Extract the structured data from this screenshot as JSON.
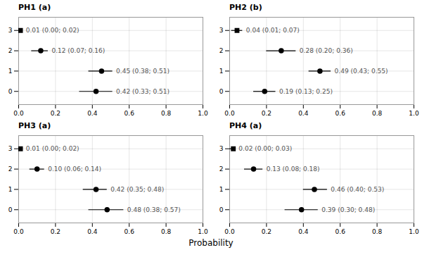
{
  "chart_data": [
    {
      "type": "errorbar",
      "title": "PH1 (a)",
      "xlim": [
        0.0,
        1.0
      ],
      "xticks": [
        {
          "value": 0.0,
          "label": "0.0"
        },
        0.2,
        0.4,
        0.6,
        0.8,
        {
          "value": 1.0,
          "label": "1.0"
        }
      ],
      "ylim": [
        -0.65,
        3.65
      ],
      "yticks": [
        0,
        1,
        2,
        3
      ],
      "grid": true,
      "data_labels": true,
      "color": "black",
      "series": [
        {
          "marker": "square",
          "y": [
            3
          ],
          "values": [
            0.01
          ],
          "lo": [
            0.0
          ],
          "hi": [
            0.02
          ],
          "value_labels": [
            "0.01 (0.00; 0.02)"
          ]
        },
        {
          "marker": "circle",
          "y": [
            2,
            1,
            0
          ],
          "values": [
            0.12,
            0.45,
            0.42
          ],
          "lo": [
            0.07,
            0.38,
            0.33
          ],
          "hi": [
            0.16,
            0.51,
            0.51
          ],
          "value_labels": [
            "0.12 (0.07; 0.16)",
            "0.45 (0.38; 0.51)",
            "0.42 (0.33; 0.51)"
          ]
        }
      ]
    },
    {
      "type": "errorbar",
      "title": "PH2 (b)",
      "xlim": [
        0.0,
        1.0
      ],
      "xticks": [
        {
          "value": 0.0,
          "label": "0.0"
        },
        0.2,
        0.4,
        0.6,
        0.8,
        {
          "value": 1.0,
          "label": "1.0"
        }
      ],
      "ylim": [
        -0.65,
        3.65
      ],
      "yticks": [
        0,
        1,
        2,
        3
      ],
      "grid": true,
      "data_labels": true,
      "color": "black",
      "series": [
        {
          "marker": "square",
          "y": [
            3
          ],
          "values": [
            0.04
          ],
          "lo": [
            0.01
          ],
          "hi": [
            0.07
          ],
          "value_labels": [
            "0.04 (0.01; 0.07)"
          ]
        },
        {
          "marker": "circle",
          "y": [
            2,
            1,
            0
          ],
          "values": [
            0.28,
            0.49,
            0.19
          ],
          "lo": [
            0.2,
            0.43,
            0.13
          ],
          "hi": [
            0.36,
            0.55,
            0.25
          ],
          "value_labels": [
            "0.28 (0.20; 0.36)",
            "0.49 (0.43; 0.55)",
            "0.19 (0.13; 0.25)"
          ]
        }
      ]
    },
    {
      "type": "errorbar",
      "title": "PH3 (a)",
      "xlim": [
        0.0,
        1.0
      ],
      "xticks": [
        {
          "value": 0.0,
          "label": "0.0"
        },
        0.2,
        0.4,
        0.6,
        0.8,
        {
          "value": 1.0,
          "label": "1.0"
        }
      ],
      "ylim": [
        -0.65,
        3.65
      ],
      "yticks": [
        0,
        1,
        2,
        3
      ],
      "grid": true,
      "data_labels": true,
      "color": "black",
      "series": [
        {
          "marker": "square",
          "y": [
            3
          ],
          "values": [
            0.01
          ],
          "lo": [
            0.0
          ],
          "hi": [
            0.02
          ],
          "value_labels": [
            "0.01 (0.00; 0.02)"
          ]
        },
        {
          "marker": "circle",
          "y": [
            2,
            1,
            0
          ],
          "values": [
            0.1,
            0.42,
            0.48
          ],
          "lo": [
            0.06,
            0.35,
            0.38
          ],
          "hi": [
            0.14,
            0.48,
            0.57
          ],
          "value_labels": [
            "0.10 (0.06; 0.14)",
            "0.42 (0.35; 0.48)",
            "0.48 (0.38; 0.57)"
          ]
        }
      ]
    },
    {
      "type": "errorbar",
      "title": "PH4 (a)",
      "xlabel": "Probability",
      "xlim": [
        0.0,
        1.0
      ],
      "xticks": [
        {
          "value": 0.0,
          "label": "0.0"
        },
        0.2,
        0.4,
        0.6,
        0.8,
        {
          "value": 1.0,
          "label": "1.0"
        }
      ],
      "ylim": [
        -0.65,
        3.65
      ],
      "yticks": [
        0,
        1,
        2,
        3
      ],
      "grid": true,
      "data_labels": true,
      "color": "black",
      "series": [
        {
          "marker": "square",
          "y": [
            3
          ],
          "values": [
            0.02
          ],
          "lo": [
            0.0
          ],
          "hi": [
            0.03
          ],
          "value_labels": [
            "0.02 (0.00; 0.03)"
          ]
        },
        {
          "marker": "circle",
          "y": [
            2,
            1,
            0
          ],
          "values": [
            0.13,
            0.46,
            0.39
          ],
          "lo": [
            0.08,
            0.4,
            0.3
          ],
          "hi": [
            0.18,
            0.53,
            0.48
          ],
          "value_labels": [
            "0.13 (0.08; 0.18)",
            "0.46 (0.40; 0.53)",
            "0.39 (0.30; 0.48)"
          ]
        }
      ]
    }
  ]
}
